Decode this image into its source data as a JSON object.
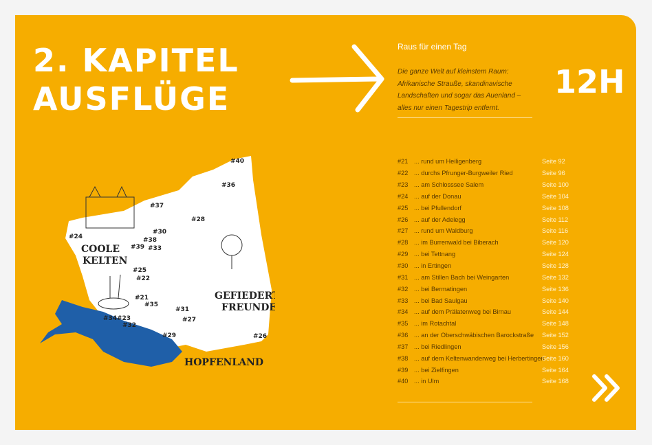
{
  "chapter": {
    "line1": "2. KAPITEL",
    "line2": "AUSFLÜGE"
  },
  "subtitle": "Raus für einen Tag",
  "intro": "Die ganze Welt auf kleinstem Raum: Afrikanische Strauße, skandinavische Landschaften und sogar das Auenland – alles nur einen Tagestrip entfernt.",
  "duration": "12H",
  "colors": {
    "background": "#f6ad00",
    "lake": "#1f5fa8",
    "text": "#5a3a00"
  },
  "toc": [
    {
      "num": "#21",
      "title": "... rund um Heiligenberg",
      "page": "Seite  92"
    },
    {
      "num": "#22",
      "title": "... durchs Pfrunger-Burgweiler Ried",
      "page": "Seite  96"
    },
    {
      "num": "#23",
      "title": "... am Schlosssee Salem",
      "page": "Seite 100"
    },
    {
      "num": "#24",
      "title": "... auf der Donau",
      "page": "Seite 104"
    },
    {
      "num": "#25",
      "title": "... bei Pfullendorf",
      "page": "Seite 108"
    },
    {
      "num": "#26",
      "title": "... auf der Adelegg",
      "page": "Seite 112"
    },
    {
      "num": "#27",
      "title": "... rund um Waldburg",
      "page": "Seite 116"
    },
    {
      "num": "#28",
      "title": "... im Burrenwald bei Biberach",
      "page": "Seite 120"
    },
    {
      "num": "#29",
      "title": "... bei Tettnang",
      "page": "Seite 124"
    },
    {
      "num": "#30",
      "title": "... in Ertingen",
      "page": "Seite 128"
    },
    {
      "num": "#31",
      "title": "... am Stillen Bach bei Weingarten",
      "page": "Seite 132"
    },
    {
      "num": "#32",
      "title": "... bei Bermatingen",
      "page": "Seite 136"
    },
    {
      "num": "#33",
      "title": "... bei Bad Saulgau",
      "page": "Seite 140"
    },
    {
      "num": "#34",
      "title": "... auf dem Prälatenweg bei Birnau",
      "page": "Seite 144"
    },
    {
      "num": "#35",
      "title": "... im Rotachtal",
      "page": "Seite 148"
    },
    {
      "num": "#36",
      "title": "... an der Oberschwäbischen Barockstraße",
      "page": "Seite 152"
    },
    {
      "num": "#37",
      "title": "... bei Riedlingen",
      "page": "Seite 156"
    },
    {
      "num": "#38",
      "title": "... auf dem Keltenwanderweg bei Herbertingen",
      "page": "Seite 160"
    },
    {
      "num": "#39",
      "title": "... bei Zielfingen",
      "page": "Seite 164"
    },
    {
      "num": "#40",
      "title": "... in Ulm",
      "page": "Seite 168"
    }
  ],
  "map": {
    "markers": [
      "#40",
      "#36",
      "#37",
      "#28",
      "#24",
      "#30",
      "#38",
      "#39",
      "#33",
      "#25",
      "#22",
      "#21",
      "#35",
      "#31",
      "#27",
      "#34",
      "#23",
      "#32",
      "#29",
      "#26"
    ],
    "regions": {
      "celts1": "COOLE",
      "celts2": "KELTEN",
      "birds1": "GEFIEDERTE",
      "birds2": "FREUNDE",
      "hops": "HOPFENLAND"
    }
  }
}
